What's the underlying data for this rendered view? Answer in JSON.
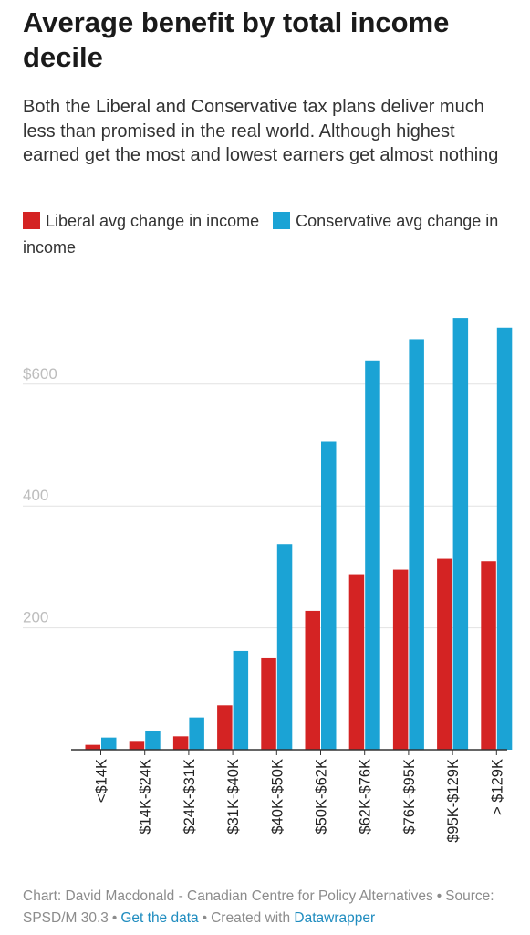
{
  "title": "Average benefit by total income decile",
  "subtitle": "Both the Liberal and Conservative tax plans deliver much less than promised in the real world. Although highest earned get the most and lowest earners get almost nothing",
  "footer": {
    "chart_credit": "Chart: David Macdonald - Canadian Centre for Policy Alternatives",
    "source": "Source: SPSD/M 30.3",
    "get_data": "Get the data",
    "created_with": "Created with",
    "tool": "Datawrapper"
  },
  "colors": {
    "liberal": "#d42323",
    "conservative": "#1ba3d5",
    "grid": "#e2e2e2",
    "tick_label": "#bdbdbd",
    "axis": "#333333"
  },
  "chart_data": {
    "type": "bar",
    "title": "Average benefit by total income decile",
    "xlabel": "",
    "ylabel": "",
    "ylim": [
      0,
      760
    ],
    "yticks": [
      {
        "value": 200,
        "label": "200"
      },
      {
        "value": 400,
        "label": "400"
      },
      {
        "value": 600,
        "label": "$600"
      }
    ],
    "grid": true,
    "legend": "top-left",
    "categories": [
      "<$14K",
      "$14K-$24K",
      "$24K-$31K",
      "$31K-$40K",
      "$40K-$50K",
      "$50K-$62K",
      "$62K-$76K",
      "$76K-$95K",
      "$95K-$129K",
      "> $129K"
    ],
    "series": [
      {
        "name": "Liberal avg change in income",
        "color": "#d42323",
        "values": [
          8,
          13,
          22,
          73,
          150,
          228,
          287,
          296,
          314,
          310
        ]
      },
      {
        "name": "Conservative avg change in income",
        "color": "#1ba3d5",
        "values": [
          20,
          30,
          53,
          162,
          337,
          506,
          639,
          674,
          709,
          693
        ]
      }
    ]
  }
}
